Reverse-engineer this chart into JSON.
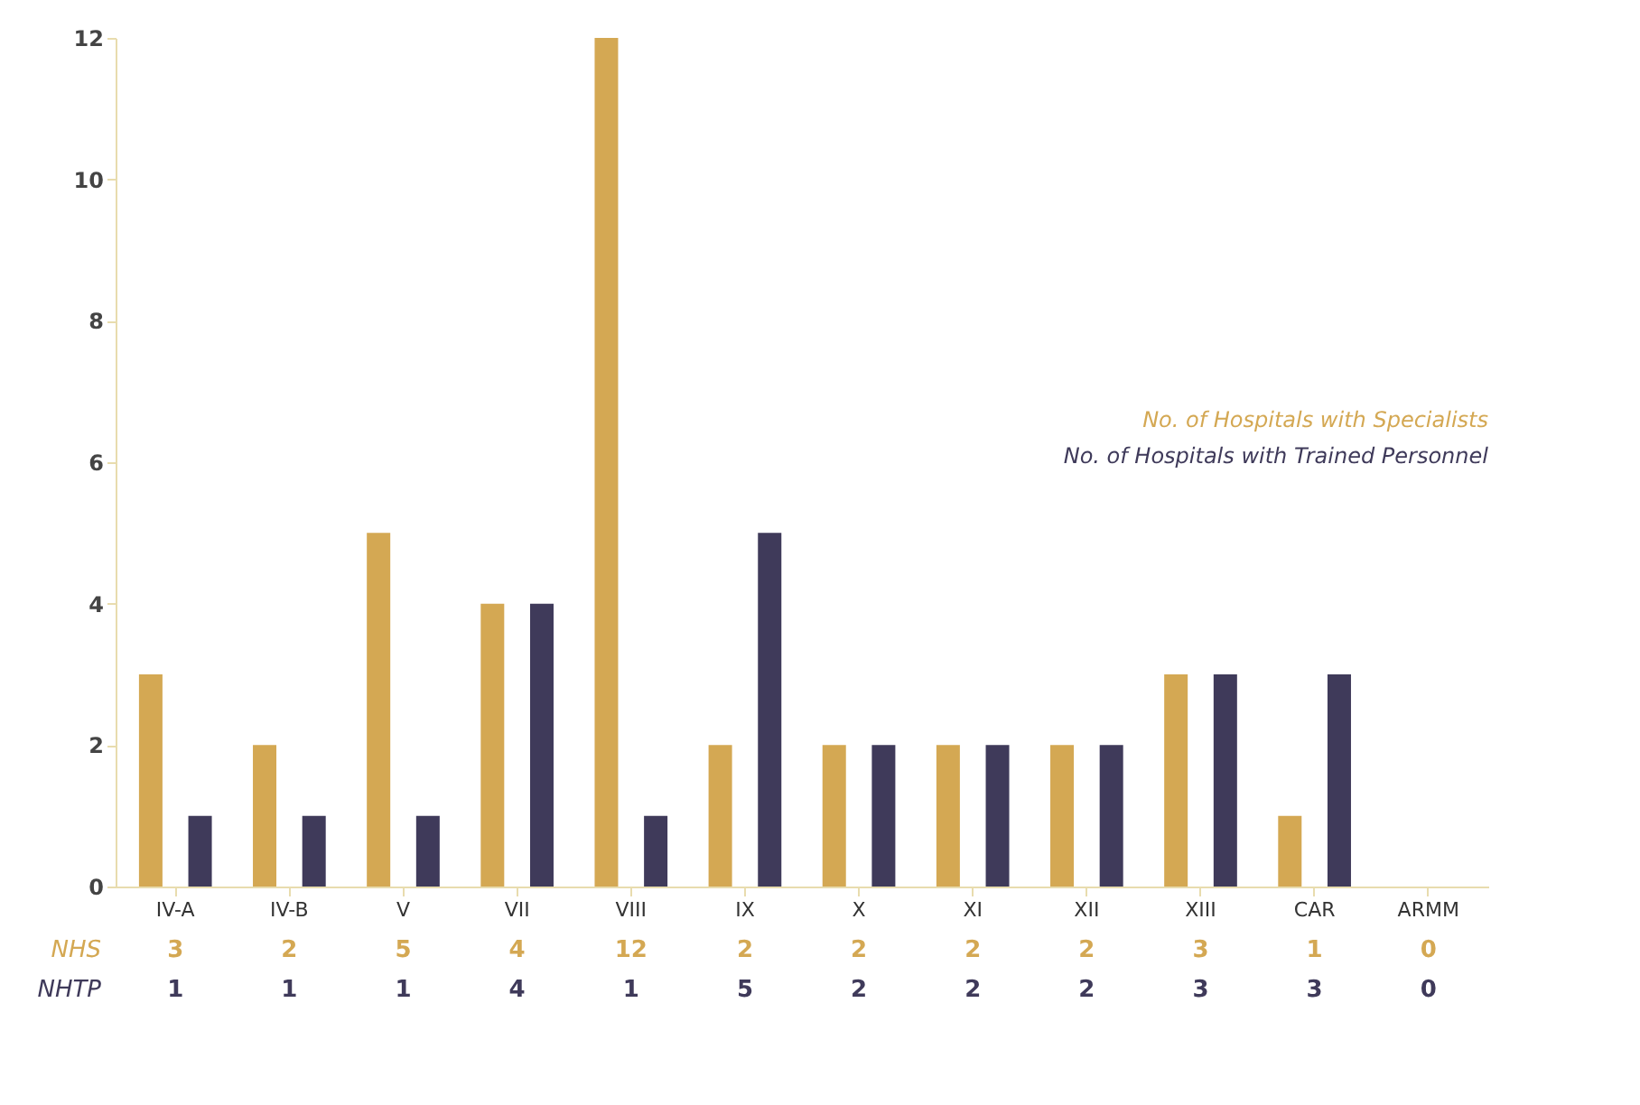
{
  "chart_data": {
    "type": "bar",
    "categories": [
      "IV-A",
      "IV-B",
      "V",
      "VII",
      "VIII",
      "IX",
      "X",
      "XI",
      "XII",
      "XIII",
      "CAR",
      "ARMM"
    ],
    "series": [
      {
        "name": "No. of Hospitals with Specialists",
        "color": "#d4a853",
        "values": [
          3,
          2,
          5,
          4,
          12,
          2,
          2,
          2,
          2,
          3,
          1,
          0
        ]
      },
      {
        "name": "No. of Hospitals with Trained Personnel",
        "color": "#3f3a5a",
        "values": [
          1,
          1,
          1,
          4,
          1,
          5,
          2,
          2,
          2,
          3,
          3,
          0
        ]
      }
    ],
    "ylim": [
      0,
      12
    ],
    "yticks": [
      0,
      2,
      4,
      6,
      8,
      10,
      12
    ],
    "annotations": [
      "NHS",
      "NHTP"
    ],
    "data_labels": true,
    "grid": false,
    "legend": "right"
  }
}
